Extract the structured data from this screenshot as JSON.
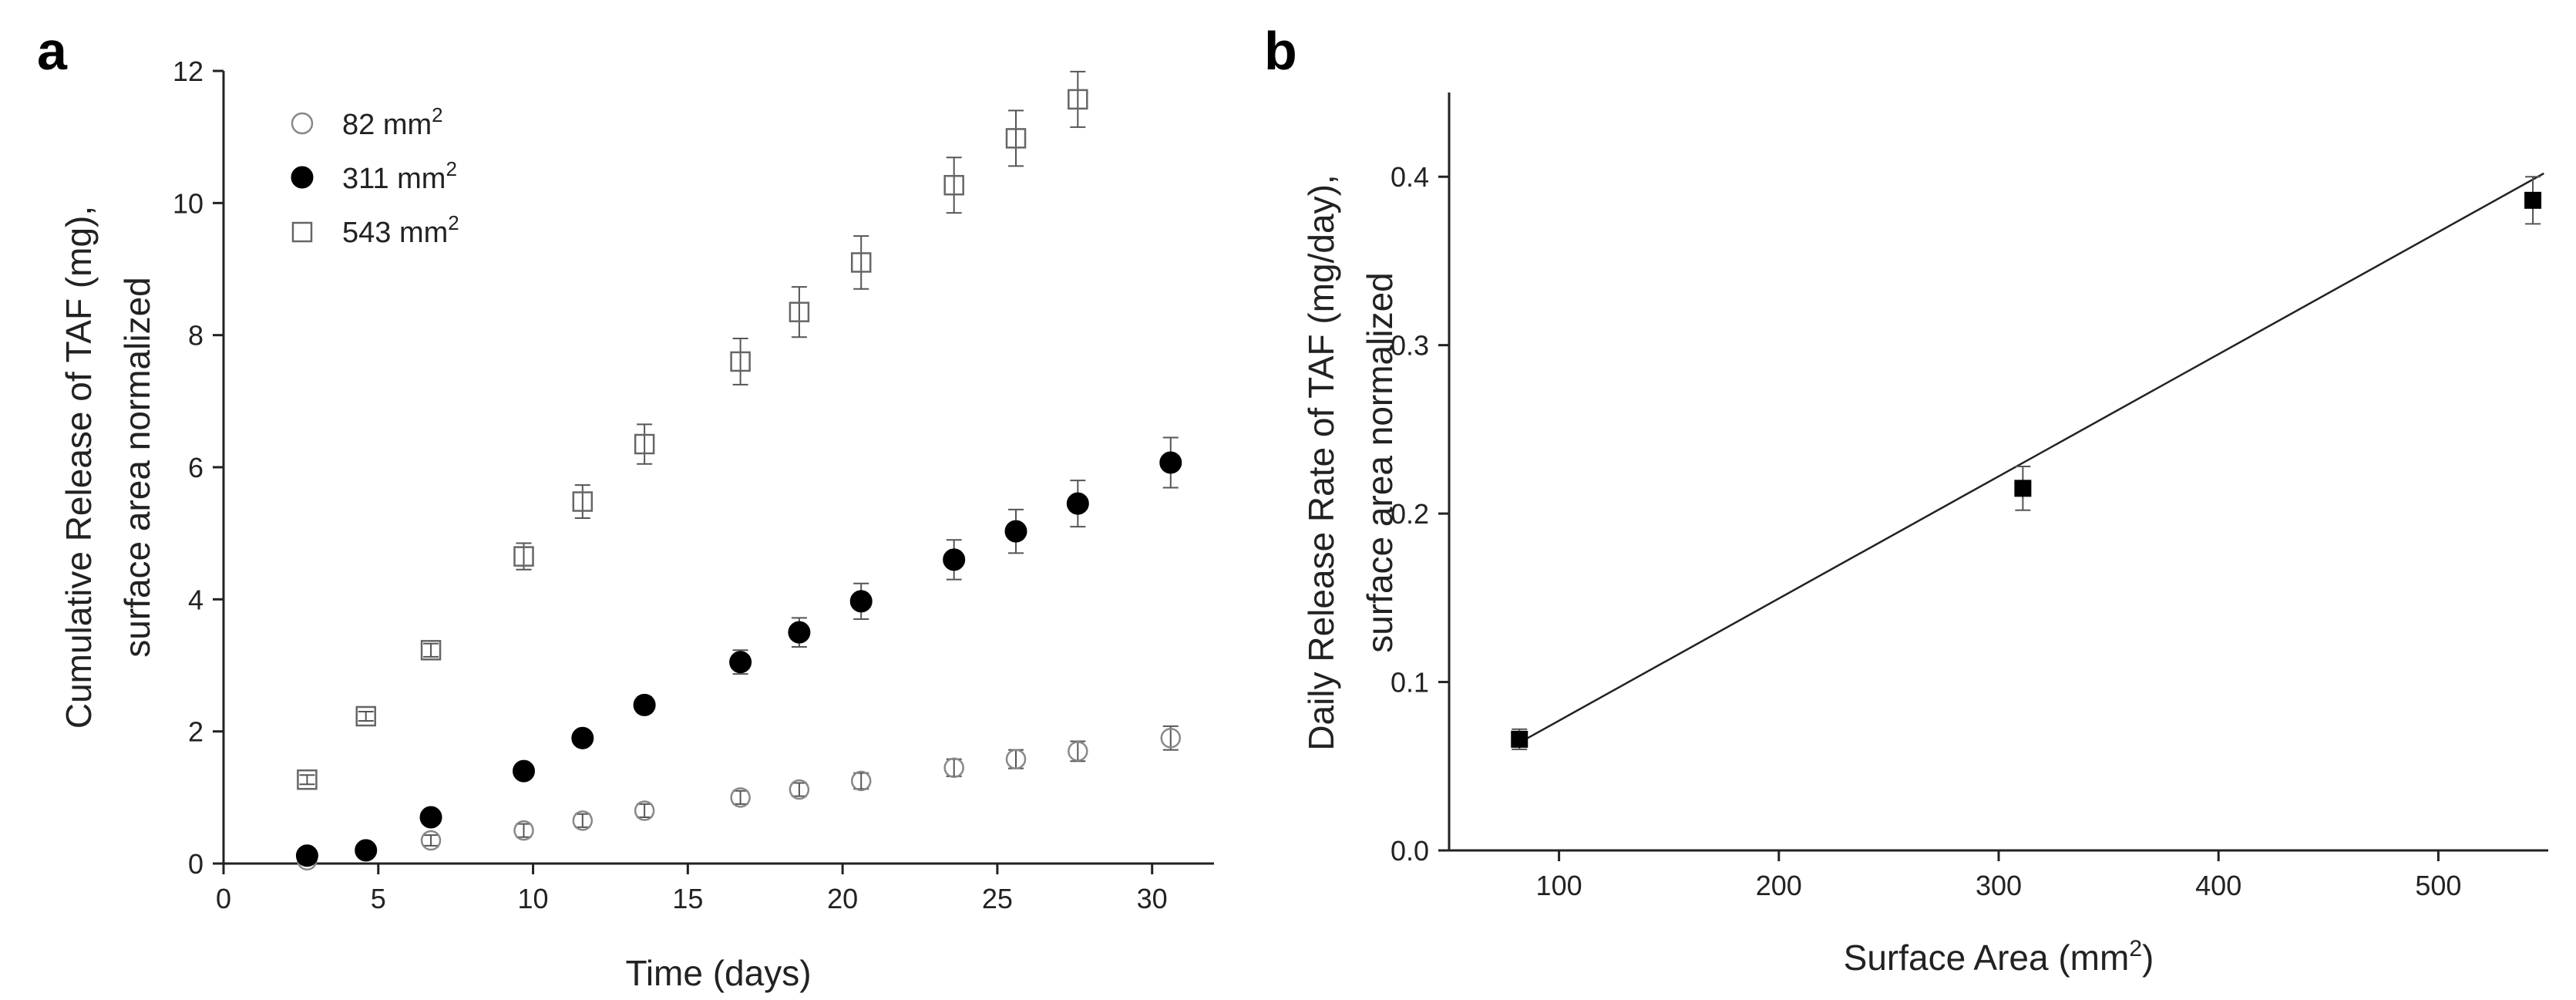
{
  "chart_data": [
    {
      "panel": "a",
      "type": "scatter",
      "title": "",
      "xlabel": "Time (days)",
      "ylabel_line1": "Cumulative Release of TAF (mg),",
      "ylabel_line2": "surface area normalized",
      "xlim": [
        0,
        32
      ],
      "ylim": [
        0,
        12
      ],
      "xticks": [
        0,
        5,
        10,
        15,
        20,
        25,
        30
      ],
      "yticks": [
        0,
        2,
        4,
        6,
        8,
        10,
        12
      ],
      "legend_position": "top-left",
      "series": [
        {
          "name": "82 mm",
          "sup": "2",
          "marker": "open-circle",
          "x": [
            2.7,
            6.7,
            9.7,
            11.6,
            13.6,
            16.7,
            18.6,
            20.6,
            23.6,
            25.6,
            27.6,
            30.6
          ],
          "y": [
            0.05,
            0.35,
            0.5,
            0.65,
            0.8,
            1.0,
            1.12,
            1.25,
            1.45,
            1.58,
            1.7,
            1.9
          ],
          "err": [
            0.05,
            0.08,
            0.1,
            0.1,
            0.1,
            0.1,
            0.1,
            0.12,
            0.13,
            0.14,
            0.15,
            0.18
          ]
        },
        {
          "name": "311 mm",
          "sup": "2",
          "marker": "filled-circle",
          "x": [
            2.7,
            4.6,
            6.7,
            9.7,
            11.6,
            13.6,
            16.7,
            18.6,
            20.6,
            23.6,
            25.6,
            27.6,
            30.6
          ],
          "y": [
            0.12,
            0.2,
            0.7,
            1.4,
            1.9,
            2.4,
            3.05,
            3.5,
            3.97,
            4.6,
            5.03,
            5.45,
            6.07
          ],
          "err": [
            0.05,
            0.05,
            0.06,
            0.07,
            0.1,
            0.12,
            0.18,
            0.22,
            0.27,
            0.3,
            0.33,
            0.35,
            0.38
          ]
        },
        {
          "name": "543 mm",
          "sup": "2",
          "marker": "open-square",
          "x": [
            2.7,
            4.6,
            6.7,
            9.7,
            11.6,
            13.6,
            16.7,
            18.6,
            20.6,
            23.6,
            25.6,
            27.6
          ],
          "y": [
            1.27,
            2.23,
            3.23,
            4.65,
            5.48,
            6.35,
            7.6,
            8.35,
            9.1,
            10.27,
            10.98,
            11.57
          ],
          "err": [
            0.07,
            0.07,
            0.1,
            0.2,
            0.25,
            0.3,
            0.35,
            0.38,
            0.4,
            0.42,
            0.42,
            0.42
          ]
        }
      ]
    },
    {
      "panel": "b",
      "type": "scatter",
      "title": "",
      "xlabel": "Surface Area (mm",
      "xlabel_sup": "2",
      "xlabel_end": ")",
      "ylabel_line1": "Daily Release Rate of TAF (mg/day),",
      "ylabel_line2": "surface area normalized",
      "xlim": [
        50,
        550
      ],
      "ylim": [
        0,
        0.45
      ],
      "xticks": [
        100,
        200,
        300,
        400,
        500
      ],
      "yticks": [
        0.0,
        0.1,
        0.2,
        0.3,
        0.4
      ],
      "ytick_labels": [
        "0.0",
        "0.1",
        "0.2",
        "0.3",
        "0.4"
      ],
      "series": [
        {
          "name": "Daily release rate",
          "marker": "filled-square",
          "x": [
            82,
            311,
            543
          ],
          "y": [
            0.066,
            0.215,
            0.386
          ],
          "err": [
            0.006,
            0.013,
            0.014
          ]
        }
      ],
      "fit_line": {
        "x": [
          82,
          548
        ],
        "y": [
          0.064,
          0.402
        ]
      }
    }
  ]
}
